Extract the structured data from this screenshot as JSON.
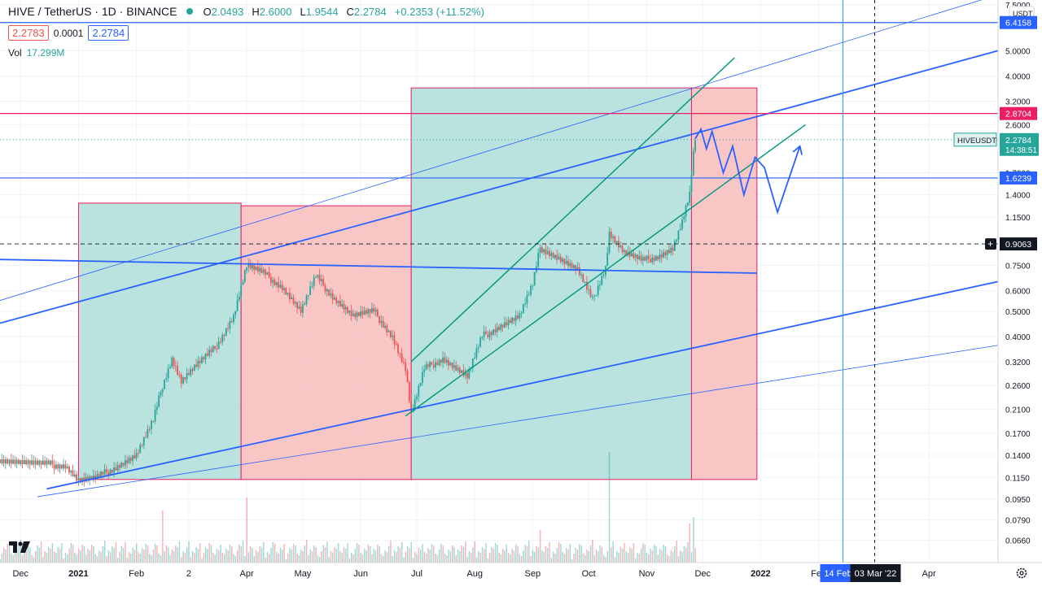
{
  "legend": {
    "title": "HIVE / TetherUS · 1D · BINANCE",
    "ohlc": [
      {
        "label": "O",
        "value": "2.0493"
      },
      {
        "label": "H",
        "value": "2.6000"
      },
      {
        "label": "L",
        "value": "1.9544"
      },
      {
        "label": "C",
        "value": "2.2784"
      },
      {
        "label": "",
        "value": "+0.2353 (+11.52%)"
      }
    ],
    "bid": "2.2783",
    "spread": "0.0001",
    "ask": "2.2784",
    "vol_label": "Vol",
    "vol_value": "17.299M"
  },
  "colors": {
    "up": "#26a69a",
    "down": "#ef5350",
    "blue": "#2962ff",
    "green_box": "#b2dfdb",
    "red_box": "#f8c0c0",
    "pink_line": "#e91e63"
  },
  "chart_data": {
    "type": "candlestick",
    "symbol": "HIVEUSDT",
    "currency": "USDT",
    "scale": "log",
    "ylim": [
      0.055,
      7.5
    ],
    "price_ticks": [
      "7.5000",
      "6.4158",
      "5.0000",
      "4.0000",
      "3.2000",
      "2.8704",
      "2.6000",
      "2.2784",
      "1.7000",
      "1.6239",
      "1.4000",
      "1.1500",
      "0.9063",
      "0.7500",
      "0.6000",
      "0.5000",
      "0.4000",
      "0.3200",
      "0.2600",
      "0.2100",
      "0.1700",
      "0.1400",
      "0.1150",
      "0.0950",
      "0.0790",
      "0.0660"
    ],
    "price_tick_values": [
      7.5,
      6.4158,
      5.0,
      4.0,
      3.2,
      2.8704,
      2.6,
      2.2784,
      1.7,
      1.6239,
      1.4,
      1.15,
      0.9063,
      0.75,
      0.6,
      0.5,
      0.4,
      0.32,
      0.26,
      0.21,
      0.17,
      0.14,
      0.115,
      0.095,
      0.079,
      0.066
    ],
    "time_ticks": [
      "Dec",
      "2021",
      "Feb",
      "2",
      "Apr",
      "May",
      "Jun",
      "Jul",
      "Aug",
      "Sep",
      "Oct",
      "Nov",
      "Dec",
      "2022",
      "Feb",
      "Apr"
    ],
    "time_tick_dates": [
      "2020-12-01",
      "2021-01-01",
      "2021-02-01",
      "2021-03-01",
      "2021-04-01",
      "2021-05-01",
      "2021-06-01",
      "2021-07-01",
      "2021-08-01",
      "2021-09-01",
      "2021-10-01",
      "2021-11-01",
      "2021-12-01",
      "2022-01-01",
      "2022-02-01",
      "2022-04-01"
    ],
    "x_start": "2020-11-20",
    "x_end": "2022-05-08",
    "price_path": [
      [
        "2020-11-20",
        0.135
      ],
      [
        "2020-12-10",
        0.13
      ],
      [
        "2020-12-25",
        0.128
      ],
      [
        "2021-01-01",
        0.112
      ],
      [
        "2021-01-10",
        0.114
      ],
      [
        "2021-01-20",
        0.125
      ],
      [
        "2021-02-01",
        0.14
      ],
      [
        "2021-02-10",
        0.19
      ],
      [
        "2021-02-15",
        0.26
      ],
      [
        "2021-02-20",
        0.33
      ],
      [
        "2021-02-25",
        0.27
      ],
      [
        "2021-03-05",
        0.31
      ],
      [
        "2021-03-15",
        0.36
      ],
      [
        "2021-03-25",
        0.48
      ],
      [
        "2021-04-01",
        0.75
      ],
      [
        "2021-04-10",
        0.7
      ],
      [
        "2021-04-20",
        0.62
      ],
      [
        "2021-04-30",
        0.5
      ],
      [
        "2021-05-08",
        0.68
      ],
      [
        "2021-05-18",
        0.56
      ],
      [
        "2021-05-28",
        0.48
      ],
      [
        "2021-06-08",
        0.5
      ],
      [
        "2021-06-18",
        0.4
      ],
      [
        "2021-06-25",
        0.3
      ],
      [
        "2021-06-28",
        0.2
      ],
      [
        "2021-07-05",
        0.3
      ],
      [
        "2021-07-15",
        0.33
      ],
      [
        "2021-07-28",
        0.28
      ],
      [
        "2021-08-05",
        0.4
      ],
      [
        "2021-08-15",
        0.44
      ],
      [
        "2021-08-25",
        0.48
      ],
      [
        "2021-09-01",
        0.63
      ],
      [
        "2021-09-05",
        0.88
      ],
      [
        "2021-09-15",
        0.8
      ],
      [
        "2021-09-25",
        0.72
      ],
      [
        "2021-10-03",
        0.55
      ],
      [
        "2021-10-10",
        0.74
      ],
      [
        "2021-10-12",
        1.0
      ],
      [
        "2021-10-20",
        0.84
      ],
      [
        "2021-10-30",
        0.78
      ],
      [
        "2021-11-08",
        0.82
      ],
      [
        "2021-11-15",
        0.87
      ],
      [
        "2021-11-20",
        1.1
      ],
      [
        "2021-11-24",
        1.4
      ],
      [
        "2021-11-26",
        2.0
      ],
      [
        "2021-11-27",
        2.2784
      ]
    ],
    "volume_spikes": [
      [
        "2021-02-15",
        0.4
      ],
      [
        "2021-04-01",
        0.5
      ],
      [
        "2021-09-05",
        0.25
      ],
      [
        "2021-10-12",
        0.85
      ],
      [
        "2021-11-24",
        0.3
      ],
      [
        "2021-11-26",
        0.35
      ]
    ],
    "long_position": [
      {
        "from": "2021-01-01",
        "to": "2021-03-29",
        "entry": 0.113,
        "top": 1.3
      },
      {
        "from": "2021-06-28",
        "to": "2021-11-25",
        "entry": 0.113,
        "top": 3.6
      }
    ],
    "short_position": [
      {
        "from": "2021-03-29",
        "to": "2021-06-28",
        "entry": 0.113,
        "top": 1.27
      },
      {
        "from": "2021-11-25",
        "to": "2021-12-30",
        "entry": 0.113,
        "top": 3.6
      }
    ],
    "horizontal_levels": [
      {
        "price": 6.4158,
        "label": "6.4158",
        "color": "#2962ff"
      },
      {
        "price": 2.8704,
        "label": "2.8704",
        "color": "#e91e63"
      },
      {
        "price": 1.6239,
        "label": "1.6239",
        "color": "#2962ff"
      },
      {
        "price": 0.9063,
        "label": "0.9063",
        "color": "#131722",
        "dashed": true
      }
    ],
    "trendlines": [
      {
        "p1": [
          "2020-11-20",
          0.45
        ],
        "p2": [
          "2022-05-08",
          5.0
        ],
        "color": "#2962ff",
        "width": 1.8
      },
      {
        "p1": [
          "2020-11-20",
          0.55
        ],
        "p2": [
          "2022-05-08",
          8.2
        ],
        "color": "#2962ff",
        "width": 0.8
      },
      {
        "p1": [
          "2020-11-20",
          0.79
        ],
        "p2": [
          "2021-12-30",
          0.7
        ],
        "color": "#2962ff",
        "width": 1.8
      },
      {
        "p1": [
          "2020-12-15",
          0.104
        ],
        "p2": [
          "2022-05-08",
          0.65
        ],
        "color": "#2962ff",
        "width": 1.8
      },
      {
        "p1": [
          "2020-12-10",
          0.097
        ],
        "p2": [
          "2022-05-08",
          0.37
        ],
        "color": "#2962ff",
        "width": 0.8
      },
      {
        "p1": [
          "2021-06-28",
          0.32
        ],
        "p2": [
          "2021-12-18",
          4.7
        ],
        "color": "#089981",
        "width": 1.5
      },
      {
        "p1": [
          "2021-06-25",
          0.198
        ],
        "p2": [
          "2022-01-25",
          2.6
        ],
        "color": "#089981",
        "width": 1.5
      }
    ],
    "projection_path": [
      [
        "2021-11-27",
        2.3
      ],
      [
        "2021-11-30",
        2.5
      ],
      [
        "2021-12-03",
        2.1
      ],
      [
        "2021-12-06",
        2.45
      ],
      [
        "2021-12-12",
        1.7
      ],
      [
        "2021-12-17",
        2.15
      ],
      [
        "2021-12-23",
        1.4
      ],
      [
        "2021-12-29",
        1.95
      ],
      [
        "2022-01-03",
        1.78
      ],
      [
        "2022-01-10",
        1.2
      ],
      [
        "2022-01-22",
        2.15
      ]
    ],
    "vertical_markers": [
      {
        "date": "2022-02-14",
        "label": "14 Feb",
        "color": "#2196f3"
      },
      {
        "date": "2022-03-03",
        "label": "03 Mar '22",
        "color": "#131722",
        "dashed": true
      }
    ],
    "last_price": {
      "label": "HIVEUSDT",
      "value": "2.2784",
      "countdown": "14:38:51"
    }
  }
}
